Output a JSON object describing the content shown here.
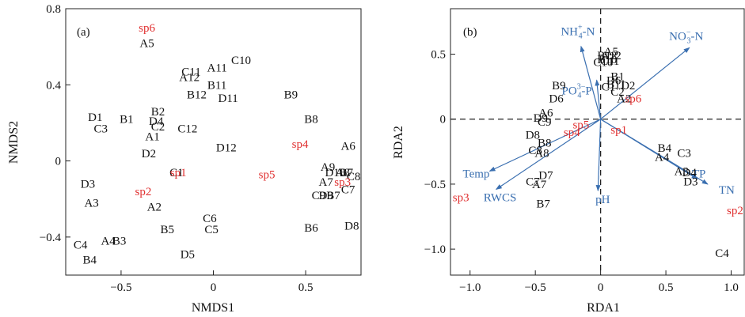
{
  "chart_data": [
    {
      "type": "scatter",
      "panel_label": "(a)",
      "xlabel": "NMDS1",
      "ylabel": "NMDS2",
      "xlim": [
        -0.8,
        0.8
      ],
      "ylim": [
        -0.6,
        0.8
      ],
      "xticks": [
        -0.5,
        0,
        0.5
      ],
      "xtick_labels": [
        "−0.5",
        "0",
        "0.5"
      ],
      "yticks": [
        -0.4,
        0,
        0.4,
        0.8
      ],
      "ytick_labels": [
        "−0.4",
        "0",
        "0.4",
        "0.8"
      ],
      "series": [
        {
          "color": "#111111",
          "points": [
            {
              "label": "A5",
              "x": -0.36,
              "y": 0.62
            },
            {
              "label": "A12",
              "x": -0.13,
              "y": 0.44
            },
            {
              "label": "C11",
              "x": -0.12,
              "y": 0.47
            },
            {
              "label": "A11",
              "x": 0.02,
              "y": 0.49
            },
            {
              "label": "C10",
              "x": 0.15,
              "y": 0.53
            },
            {
              "label": "B11",
              "x": 0.02,
              "y": 0.4
            },
            {
              "label": "B12",
              "x": -0.09,
              "y": 0.35
            },
            {
              "label": "D11",
              "x": 0.08,
              "y": 0.33
            },
            {
              "label": "B9",
              "x": 0.42,
              "y": 0.35
            },
            {
              "label": "D1",
              "x": -0.64,
              "y": 0.23
            },
            {
              "label": "B1",
              "x": -0.47,
              "y": 0.22
            },
            {
              "label": "B2",
              "x": -0.3,
              "y": 0.26
            },
            {
              "label": "D4",
              "x": -0.31,
              "y": 0.21
            },
            {
              "label": "C2",
              "x": -0.3,
              "y": 0.18
            },
            {
              "label": "C3",
              "x": -0.61,
              "y": 0.17
            },
            {
              "label": "C12",
              "x": -0.14,
              "y": 0.17
            },
            {
              "label": "A1",
              "x": -0.33,
              "y": 0.13
            },
            {
              "label": "B8",
              "x": 0.53,
              "y": 0.22
            },
            {
              "label": "D2",
              "x": -0.35,
              "y": 0.04
            },
            {
              "label": "D12",
              "x": 0.07,
              "y": 0.07
            },
            {
              "label": "A6",
              "x": 0.73,
              "y": 0.08
            },
            {
              "label": "D3",
              "x": -0.68,
              "y": -0.12
            },
            {
              "label": "C1",
              "x": -0.2,
              "y": -0.06
            },
            {
              "label": "A9",
              "x": 0.62,
              "y": -0.03
            },
            {
              "label": "D10",
              "x": 0.66,
              "y": -0.06
            },
            {
              "label": "A8",
              "x": 0.7,
              "y": -0.06
            },
            {
              "label": "B7",
              "x": 0.72,
              "y": -0.06
            },
            {
              "label": "C8",
              "x": 0.76,
              "y": -0.08
            },
            {
              "label": "A7",
              "x": 0.61,
              "y": -0.11
            },
            {
              "label": "C7",
              "x": 0.73,
              "y": -0.15
            },
            {
              "label": "C9",
              "x": 0.57,
              "y": -0.18
            },
            {
              "label": "D9",
              "x": 0.61,
              "y": -0.18
            },
            {
              "label": "B7",
              "x": 0.65,
              "y": -0.18
            },
            {
              "label": "A3",
              "x": -0.66,
              "y": -0.22
            },
            {
              "label": "A2",
              "x": -0.32,
              "y": -0.24
            },
            {
              "label": "C6",
              "x": -0.02,
              "y": -0.3
            },
            {
              "label": "C5",
              "x": -0.01,
              "y": -0.36
            },
            {
              "label": "B5",
              "x": -0.25,
              "y": -0.36
            },
            {
              "label": "B6",
              "x": 0.53,
              "y": -0.35
            },
            {
              "label": "D8",
              "x": 0.75,
              "y": -0.34
            },
            {
              "label": "C4",
              "x": -0.72,
              "y": -0.44
            },
            {
              "label": "A4",
              "x": -0.57,
              "y": -0.42
            },
            {
              "label": "B3",
              "x": -0.51,
              "y": -0.42
            },
            {
              "label": "B4",
              "x": -0.67,
              "y": -0.52
            },
            {
              "label": "D5",
              "x": -0.14,
              "y": -0.49
            }
          ]
        },
        {
          "color": "#e03030",
          "points": [
            {
              "label": "sp6",
              "x": -0.36,
              "y": 0.7
            },
            {
              "label": "sp4",
              "x": 0.47,
              "y": 0.09
            },
            {
              "label": "sp1",
              "x": -0.19,
              "y": -0.06
            },
            {
              "label": "sp5",
              "x": 0.29,
              "y": -0.07
            },
            {
              "label": "sp3",
              "x": 0.7,
              "y": -0.11
            },
            {
              "label": "sp2",
              "x": -0.38,
              "y": -0.16
            }
          ]
        }
      ]
    },
    {
      "type": "scatter",
      "panel_label": "(b)",
      "xlabel": "RDA1",
      "ylabel": "RDA2",
      "xlim": [
        -1.15,
        1.1
      ],
      "ylim": [
        -1.2,
        0.85
      ],
      "xticks": [
        -1.0,
        -0.5,
        0,
        0.5,
        1.0
      ],
      "xtick_labels": [
        "−1.0",
        "−0.5",
        "0",
        "0.5",
        "1.0"
      ],
      "yticks": [
        -1.0,
        -0.5,
        0,
        0.5
      ],
      "ytick_labels": [
        "−1.0",
        "−0.5",
        "0",
        "0.5"
      ],
      "zero_lines": "dashed",
      "arrows": [
        {
          "label": "NH",
          "sub": "4",
          "sup": "+",
          "suffix": "-N",
          "x": -0.15,
          "y": 0.56
        },
        {
          "label": "NO",
          "sub": "3",
          "sup": "−",
          "suffix": "-N",
          "x": 0.68,
          "y": 0.55
        },
        {
          "label": "PO",
          "sub": "4",
          "sup": "3−",
          "suffix": "-P",
          "x": -0.03,
          "y": 0.3
        },
        {
          "label": "Temp",
          "x": -0.85,
          "y": -0.4
        },
        {
          "label": "RWCS",
          "x": -0.8,
          "y": -0.54
        },
        {
          "label": "pH",
          "x": -0.02,
          "y": -0.55
        },
        {
          "label": "TP",
          "x": 0.74,
          "y": -0.46
        },
        {
          "label": "TN",
          "x": 0.82,
          "y": -0.5
        }
      ],
      "arrow_color": "#3a6fb0",
      "series": [
        {
          "color": "#111111",
          "points": [
            {
              "label": "A5",
              "x": 0.08,
              "y": 0.52
            },
            {
              "label": "B12",
              "x": 0.05,
              "y": 0.49
            },
            {
              "label": "A12",
              "x": 0.08,
              "y": 0.49
            },
            {
              "label": "C10",
              "x": 0.02,
              "y": 0.44
            },
            {
              "label": "C11",
              "x": 0.07,
              "y": 0.45
            },
            {
              "label": "B10",
              "x": 0.05,
              "y": 0.46
            },
            {
              "label": "B1",
              "x": 0.13,
              "y": 0.33
            },
            {
              "label": "B11",
              "x": 0.12,
              "y": 0.27
            },
            {
              "label": "D6",
              "x": 0.1,
              "y": 0.3
            },
            {
              "label": "C1",
              "x": 0.06,
              "y": 0.25
            },
            {
              "label": "D2",
              "x": 0.21,
              "y": 0.26
            },
            {
              "label": "C2",
              "x": 0.13,
              "y": 0.21
            },
            {
              "label": "A2",
              "x": 0.18,
              "y": 0.16
            },
            {
              "label": "B9",
              "x": -0.32,
              "y": 0.26
            },
            {
              "label": "D6",
              "x": -0.34,
              "y": 0.16
            },
            {
              "label": "A6",
              "x": -0.42,
              "y": 0.05
            },
            {
              "label": "D9",
              "x": -0.46,
              "y": 0.01
            },
            {
              "label": "C9",
              "x": -0.43,
              "y": -0.02
            },
            {
              "label": "D8",
              "x": -0.52,
              "y": -0.12
            },
            {
              "label": "B8",
              "x": -0.43,
              "y": -0.18
            },
            {
              "label": "C8",
              "x": -0.5,
              "y": -0.24
            },
            {
              "label": "A8",
              "x": -0.45,
              "y": -0.26
            },
            {
              "label": "D7",
              "x": -0.42,
              "y": -0.43
            },
            {
              "label": "C7",
              "x": -0.52,
              "y": -0.48
            },
            {
              "label": "A7",
              "x": -0.47,
              "y": -0.5
            },
            {
              "label": "B7",
              "x": -0.44,
              "y": -0.65
            },
            {
              "label": "B4",
              "x": 0.49,
              "y": -0.22
            },
            {
              "label": "C3",
              "x": 0.64,
              "y": -0.26
            },
            {
              "label": "A4",
              "x": 0.47,
              "y": -0.29
            },
            {
              "label": "A3",
              "x": 0.62,
              "y": -0.4
            },
            {
              "label": "D4",
              "x": 0.68,
              "y": -0.41
            },
            {
              "label": "D3",
              "x": 0.69,
              "y": -0.48
            },
            {
              "label": "C4",
              "x": 0.93,
              "y": -1.03
            }
          ]
        },
        {
          "color": "#e03030",
          "points": [
            {
              "label": "sp6",
              "x": 0.25,
              "y": 0.16
            },
            {
              "label": "sp5",
              "x": -0.15,
              "y": -0.04
            },
            {
              "label": "sp4",
              "x": -0.22,
              "y": -0.1
            },
            {
              "label": "sp1",
              "x": 0.14,
              "y": -0.08
            },
            {
              "label": "sp3",
              "x": -1.07,
              "y": -0.6
            },
            {
              "label": "sp2",
              "x": 1.03,
              "y": -0.7
            }
          ]
        }
      ]
    }
  ]
}
